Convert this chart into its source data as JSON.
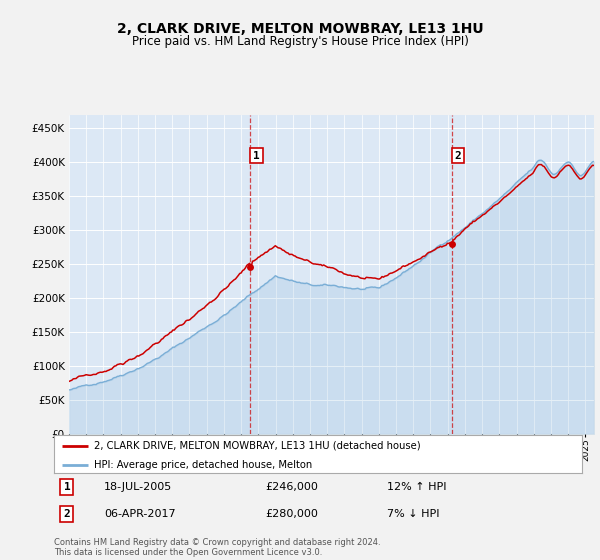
{
  "title": "2, CLARK DRIVE, MELTON MOWBRAY, LE13 1HU",
  "subtitle": "Price paid vs. HM Land Registry's House Price Index (HPI)",
  "ylim": [
    0,
    470000
  ],
  "yticks": [
    0,
    50000,
    100000,
    150000,
    200000,
    250000,
    300000,
    350000,
    400000,
    450000
  ],
  "ytick_labels": [
    "£0",
    "£50K",
    "£100K",
    "£150K",
    "£200K",
    "£250K",
    "£300K",
    "£350K",
    "£400K",
    "£450K"
  ],
  "bg_color": "#f2f2f2",
  "plot_bg_color": "#dce8f5",
  "grid_color": "#ffffff",
  "sale1_date": 2005.54,
  "sale1_price": 246000,
  "sale2_date": 2017.26,
  "sale2_price": 280000,
  "legend_line1": "2, CLARK DRIVE, MELTON MOWBRAY, LE13 1HU (detached house)",
  "legend_line2": "HPI: Average price, detached house, Melton",
  "annotation1_date": "18-JUL-2005",
  "annotation1_price": "£246,000",
  "annotation1_hpi": "12% ↑ HPI",
  "annotation2_date": "06-APR-2017",
  "annotation2_price": "£280,000",
  "annotation2_hpi": "7% ↓ HPI",
  "footer": "Contains HM Land Registry data © Crown copyright and database right 2024.\nThis data is licensed under the Open Government Licence v3.0.",
  "hpi_color": "#7aaed6",
  "price_color": "#cc0000",
  "vline_color": "#cc0000",
  "xmin": 1995,
  "xmax": 2025.5
}
